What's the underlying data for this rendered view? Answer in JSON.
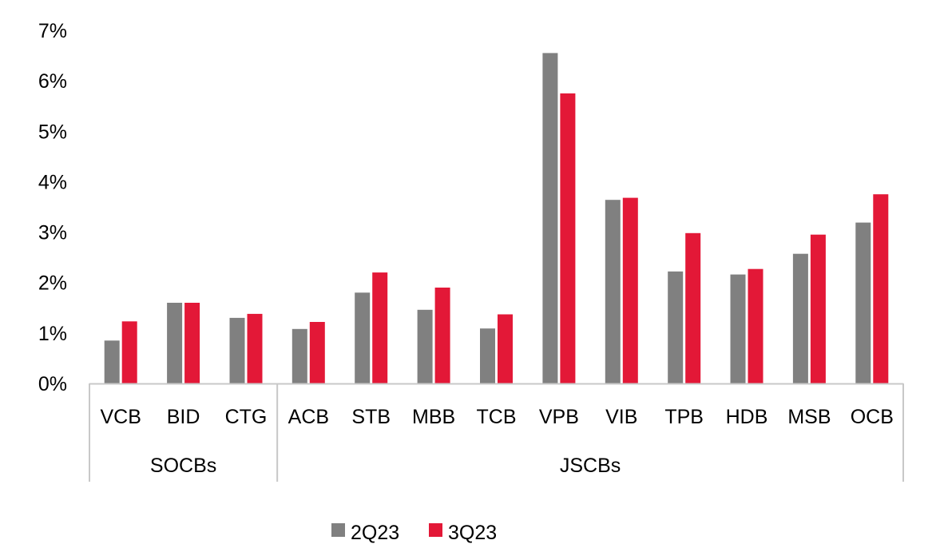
{
  "chart_data": {
    "type": "bar",
    "ylim": [
      0,
      7
    ],
    "y_ticks": [
      "0%",
      "1%",
      "2%",
      "3%",
      "4%",
      "5%",
      "6%",
      "7%"
    ],
    "grid": false,
    "legend_position": "bottom",
    "groups": [
      {
        "label": "SOCBs",
        "categories": [
          "VCB",
          "BID",
          "CTG"
        ]
      },
      {
        "label": "JSCBs",
        "categories": [
          "ACB",
          "STB",
          "MBB",
          "TCB",
          "VPB",
          "VIB",
          "TPB",
          "HDB",
          "MSB",
          "OCB"
        ]
      }
    ],
    "categories": [
      "VCB",
      "BID",
      "CTG",
      "ACB",
      "STB",
      "MBB",
      "TCB",
      "VPB",
      "VIB",
      "TPB",
      "HDB",
      "MSB",
      "OCB"
    ],
    "series": [
      {
        "name": "2Q23",
        "color": "#808080",
        "values": [
          0.85,
          1.6,
          1.3,
          1.08,
          1.8,
          1.46,
          1.09,
          6.55,
          3.64,
          2.22,
          2.16,
          2.57,
          3.19
        ]
      },
      {
        "name": "3Q23",
        "color": "#E31837",
        "values": [
          1.23,
          1.6,
          1.38,
          1.22,
          2.2,
          1.9,
          1.37,
          5.75,
          3.68,
          2.98,
          2.27,
          2.95,
          3.75
        ]
      }
    ]
  }
}
